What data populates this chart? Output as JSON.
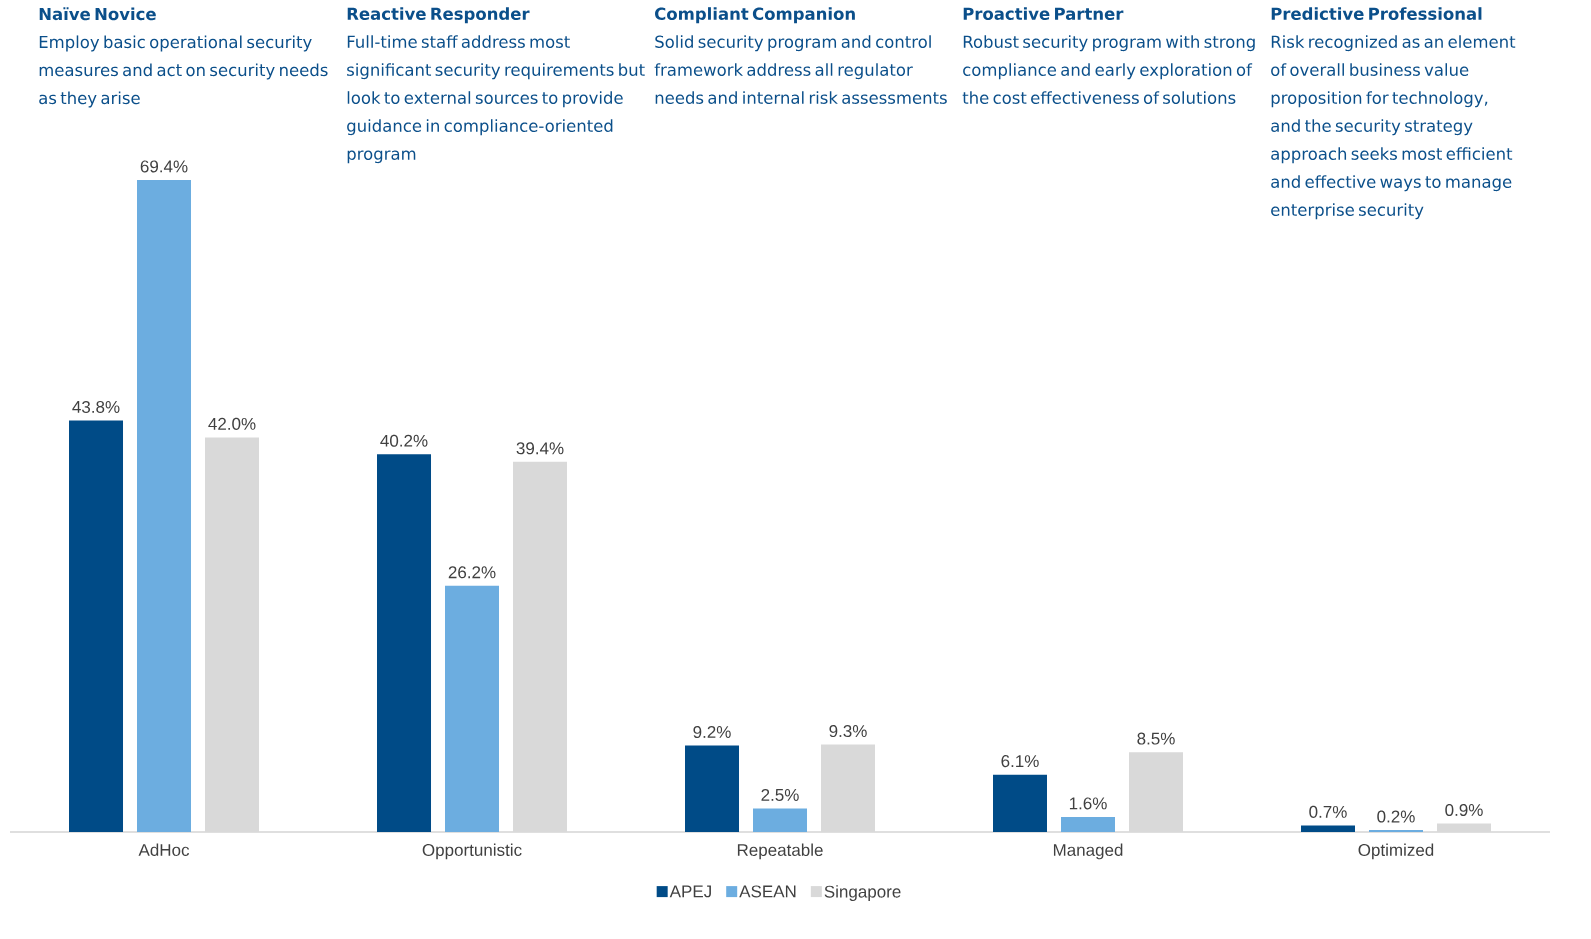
{
  "chart_data": {
    "type": "bar",
    "categories": [
      "AdHoc",
      "Opportunistic",
      "Repeatable",
      "Managed",
      "Optimized"
    ],
    "series": [
      {
        "name": "APEJ",
        "color": "#004b87",
        "values": [
          43.8,
          40.2,
          9.2,
          6.1,
          0.7
        ],
        "value_labels": [
          "43.8%",
          "40.2%",
          "9.2%",
          "6.1%",
          "0.7%"
        ]
      },
      {
        "name": "ASEAN",
        "color": "#6cade0",
        "values": [
          69.4,
          26.2,
          2.5,
          1.6,
          0.2
        ],
        "value_labels": [
          "69.4%",
          "26.2%",
          "2.5%",
          "1.6%",
          "0.2%"
        ]
      },
      {
        "name": "Singapore",
        "color": "#d9d9d9",
        "values": [
          42.0,
          39.4,
          9.3,
          8.5,
          0.9
        ],
        "value_labels": [
          "42.0%",
          "39.4%",
          "9.3%",
          "8.5%",
          "0.9%"
        ]
      }
    ],
    "legend": "bottom",
    "annotations": [
      "Naïve Novice",
      "Employ basic operational security measures and act on security needs as they arise",
      "Reactive Responder",
      "Full-time staff address most significant security requirements but look to external sources to provide guidance in compliance-oriented program",
      "Compliant Companion",
      "Solid security program and control framework address all regulator needs and internal risk assessments",
      "Proactive Partner",
      "Robust security program with strong compliance and early exploration of the cost effectiveness of solutions",
      "Predictive Professional",
      "Risk recognized as an element of overall business value proposition for technology, and the security strategy approach seeks most efficient and effective ways to  manage enterprise security"
    ]
  }
}
